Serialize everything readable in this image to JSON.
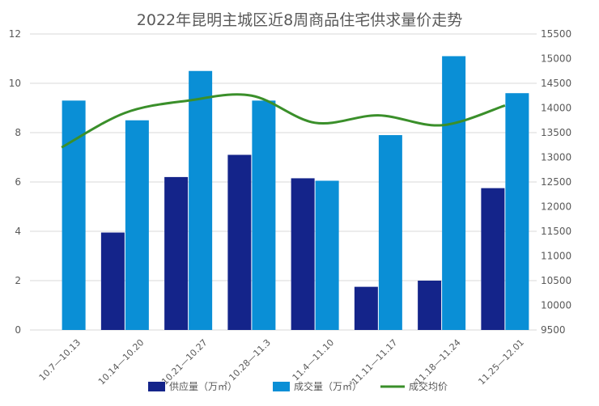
{
  "chart_data": {
    "type": "bar",
    "title": "2022年昆明主城区近8周商品住宅供求量价走势",
    "categories": [
      "10.7—10.13",
      "10.14—10.20",
      "10.21—10.27",
      "10.28—11.3",
      "11.4—11.10",
      "11.11—11.17",
      "11.18—11.24",
      "11.25—12.01"
    ],
    "series": [
      {
        "name": "供应量（万㎡）",
        "kind": "bar",
        "axis": "left",
        "color": "#14248a",
        "values": [
          0,
          3.95,
          6.2,
          7.1,
          6.15,
          1.75,
          2.0,
          5.75
        ]
      },
      {
        "name": "成交量（万㎡）",
        "kind": "bar",
        "axis": "left",
        "color": "#0a8fd6",
        "values": [
          9.3,
          8.5,
          10.5,
          9.3,
          6.05,
          7.9,
          11.1,
          9.6
        ]
      },
      {
        "name": "成交均价",
        "kind": "line",
        "axis": "right",
        "color": "#3a8f2a",
        "values": [
          13200,
          13900,
          14150,
          14250,
          13700,
          13850,
          13650,
          14050
        ]
      }
    ],
    "y_left": {
      "min": 0,
      "max": 12,
      "ticks": [
        "0",
        "2",
        "4",
        "6",
        "8",
        "10",
        "12"
      ]
    },
    "y_right": {
      "min": 9500,
      "max": 15500,
      "ticks": [
        "9500",
        "10000",
        "10500",
        "11000",
        "11500",
        "12000",
        "12500",
        "13000",
        "13500",
        "14000",
        "14500",
        "15000",
        "15500"
      ]
    },
    "legend_position": "bottom",
    "grid": true
  }
}
